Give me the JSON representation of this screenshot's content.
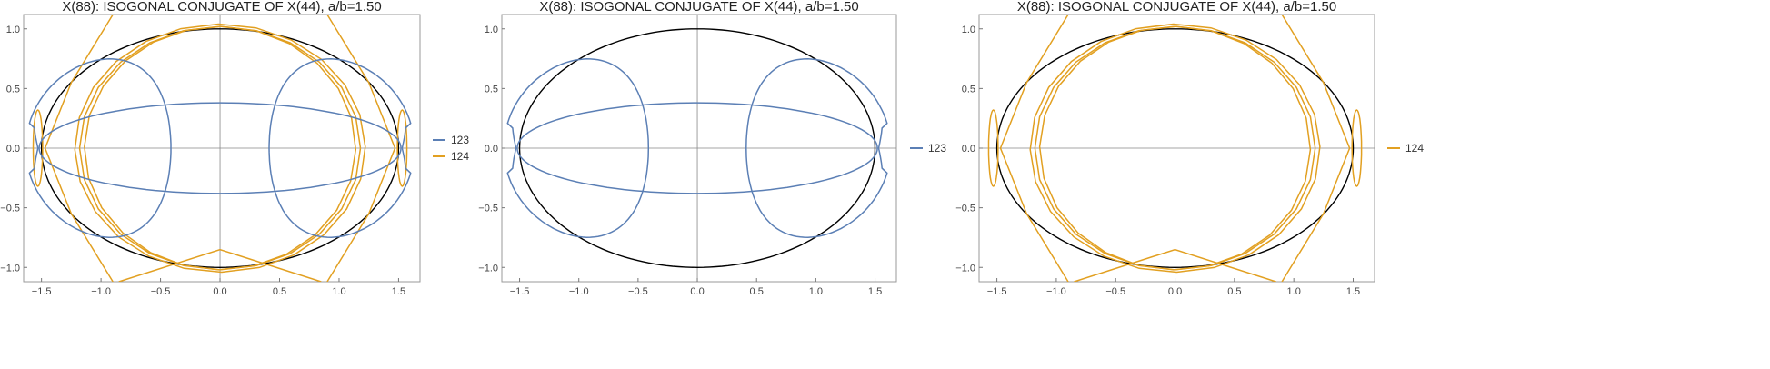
{
  "colors": {
    "series_123": "#5b7fb5",
    "series_124": "#e2a021",
    "ellipse": "#000000",
    "axes": "#888888"
  },
  "chart_data": [
    {
      "type": "line",
      "title": "X(88): ISOGONAL CONJUGATE OF X(44), a/b=1.50",
      "xlim": [
        -1.65,
        1.68
      ],
      "ylim": [
        -1.12,
        1.12
      ],
      "xticks": [
        -1.5,
        -1.0,
        -0.5,
        0.0,
        0.5,
        1.0,
        1.5
      ],
      "yticks": [
        1.0,
        0.5,
        0.0,
        -0.5,
        -1.0
      ],
      "xtick_labels": [
        "−1.5",
        "−1.0",
        "−0.5",
        "0.0",
        "0.5",
        "1.0",
        "1.5"
      ],
      "ytick_labels": [
        "1.0",
        "0.5",
        "0.0",
        "−0.5",
        "−1.0"
      ],
      "legend": "right",
      "grid": false,
      "series": [
        {
          "name": "123",
          "color": "#5b7fb5"
        },
        {
          "name": "124",
          "color": "#e2a021"
        }
      ]
    },
    {
      "type": "line",
      "title": "X(88): ISOGONAL CONJUGATE OF X(44), a/b=1.50",
      "xlim": [
        -1.65,
        1.68
      ],
      "ylim": [
        -1.12,
        1.12
      ],
      "xticks": [
        -1.5,
        -1.0,
        -0.5,
        0.0,
        0.5,
        1.0,
        1.5
      ],
      "yticks": [
        1.0,
        0.5,
        0.0,
        -0.5,
        -1.0
      ],
      "xtick_labels": [
        "−1.5",
        "−1.0",
        "−0.5",
        "0.0",
        "0.5",
        "1.0",
        "1.5"
      ],
      "ytick_labels": [
        "1.0",
        "0.5",
        "0.0",
        "−0.5",
        "−1.0"
      ],
      "legend": "right",
      "grid": false,
      "series": [
        {
          "name": "123",
          "color": "#5b7fb5"
        }
      ]
    },
    {
      "type": "line",
      "title": "X(88): ISOGONAL CONJUGATE OF X(44), a/b=1.50",
      "xlim": [
        -1.65,
        1.68
      ],
      "ylim": [
        -1.12,
        1.12
      ],
      "xticks": [
        -1.5,
        -1.0,
        -0.5,
        0.0,
        0.5,
        1.0,
        1.5
      ],
      "yticks": [
        1.0,
        0.5,
        0.0,
        -0.5,
        -1.0
      ],
      "xtick_labels": [
        "−1.5",
        "−1.0",
        "−0.5",
        "0.0",
        "0.5",
        "1.0",
        "1.5"
      ],
      "ytick_labels": [
        "1.0",
        "0.5",
        "0.0",
        "−0.5",
        "−1.0"
      ],
      "legend": "right",
      "grid": false,
      "series": [
        {
          "name": "124",
          "color": "#e2a021"
        }
      ]
    }
  ]
}
